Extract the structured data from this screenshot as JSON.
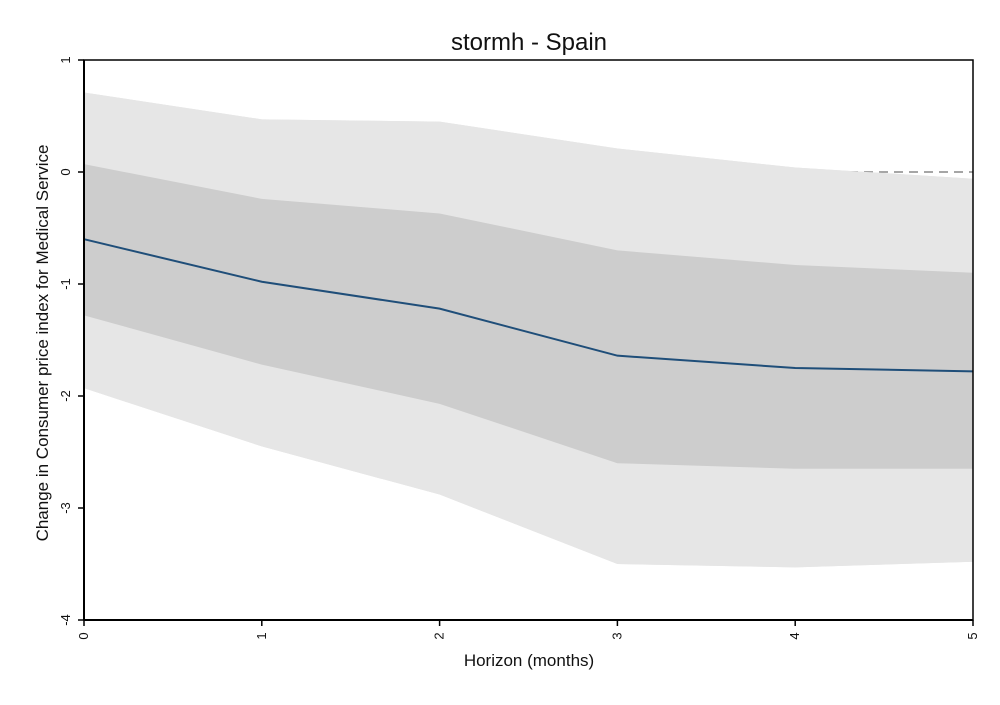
{
  "chart_data": {
    "type": "line",
    "title": "stormh - Spain",
    "xlabel": "Horizon (months)",
    "ylabel": "Change in Consumer price index for  Medical Service",
    "x": [
      0,
      1,
      2,
      3,
      4,
      5
    ],
    "xticks": [
      "0",
      "1",
      "2",
      "3",
      "4",
      "5"
    ],
    "yticks": [
      "-4",
      "-3",
      "-2",
      "-1",
      "0",
      "1"
    ],
    "xlim": [
      0,
      5
    ],
    "ylim": [
      -4,
      1
    ],
    "grid": false,
    "series": [
      {
        "values": [
          -0.6,
          -0.98,
          -1.22,
          -1.64,
          -1.75,
          -1.78
        ]
      }
    ],
    "bands": [
      {
        "lower": [
          -1.93,
          -2.45,
          -2.88,
          -3.5,
          -3.53,
          -3.48
        ],
        "upper": [
          0.71,
          0.47,
          0.45,
          0.21,
          0.04,
          -0.06
        ]
      },
      {
        "lower": [
          -1.28,
          -1.72,
          -2.07,
          -2.6,
          -2.65,
          -2.65
        ],
        "upper": [
          0.07,
          -0.24,
          -0.37,
          -0.7,
          -0.83,
          -0.9
        ]
      }
    ],
    "reference_line": {
      "y": 0,
      "style": "dashed"
    },
    "colors": {
      "line": "#1f4e79",
      "outer_band": "#e6e6e6",
      "inner_band": "#cdcdcd",
      "reference": "#a6a6a6",
      "axis": "#000000"
    }
  }
}
